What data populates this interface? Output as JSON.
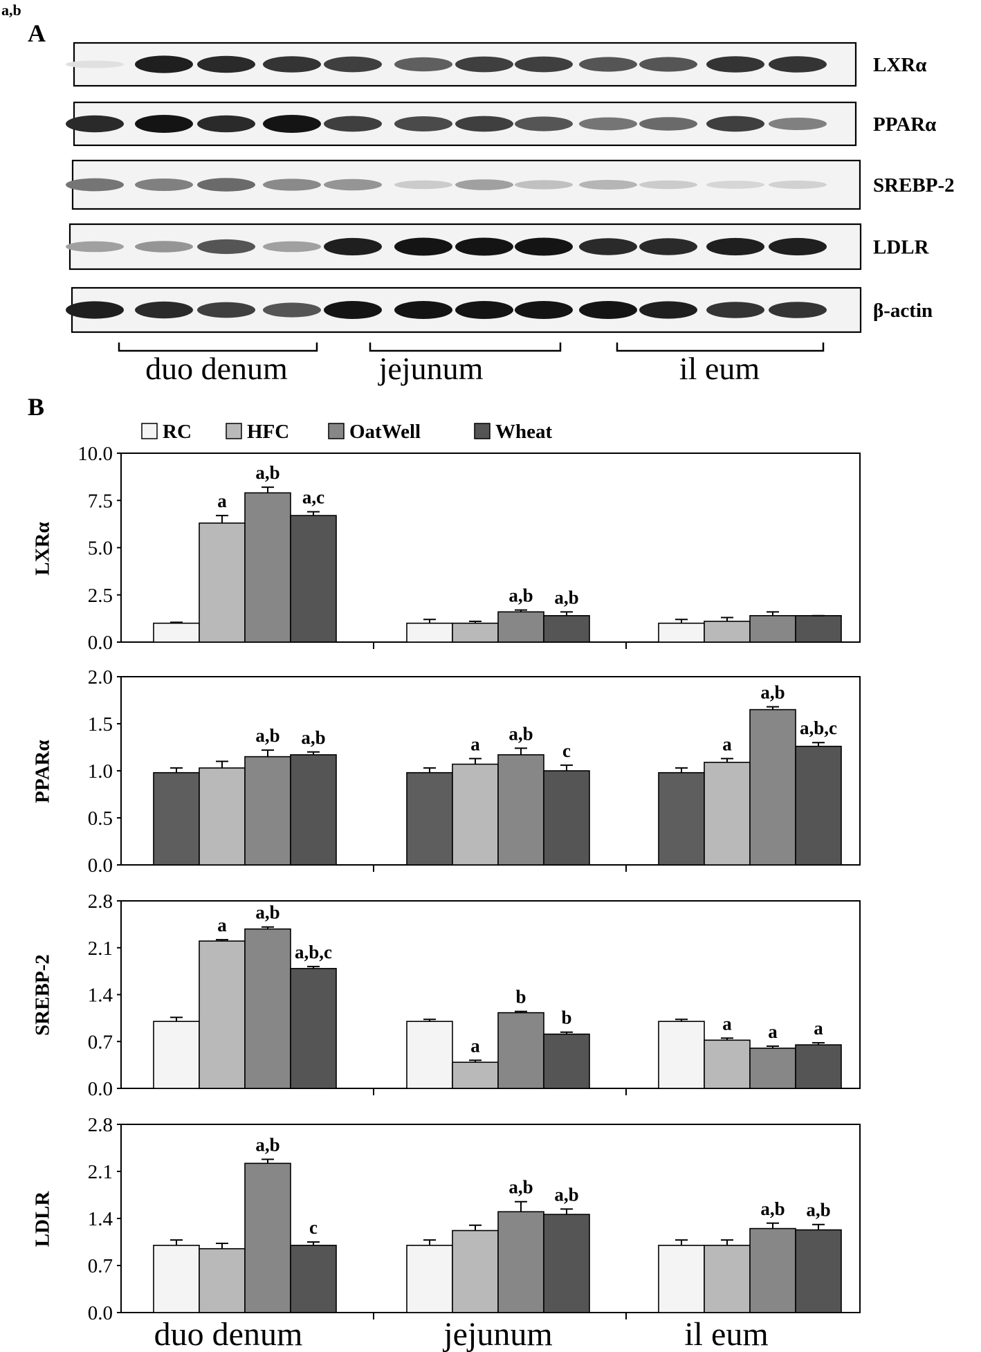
{
  "corner_note": "a,b",
  "panel_a": {
    "label": "A",
    "blots": [
      {
        "protein": "LXRα",
        "intensities": [
          0.05,
          0.95,
          0.9,
          0.85,
          0.8,
          0.65,
          0.8,
          0.8,
          0.7,
          0.7,
          0.85,
          0.85
        ]
      },
      {
        "protein": "PPARα",
        "intensities": [
          0.9,
          1.0,
          0.9,
          1.0,
          0.8,
          0.75,
          0.8,
          0.7,
          0.55,
          0.6,
          0.8,
          0.5
        ]
      },
      {
        "protein": "SREBP-2",
        "intensities": [
          0.55,
          0.5,
          0.6,
          0.45,
          0.4,
          0.15,
          0.35,
          0.2,
          0.25,
          0.15,
          0.1,
          0.12
        ]
      },
      {
        "protein": "LDLR",
        "intensities": [
          0.35,
          0.4,
          0.7,
          0.35,
          0.95,
          1.0,
          1.0,
          1.0,
          0.9,
          0.9,
          0.95,
          0.95
        ]
      },
      {
        "protein": "β-actin",
        "intensities": [
          0.95,
          0.9,
          0.8,
          0.7,
          1.0,
          1.0,
          1.0,
          1.0,
          1.0,
          0.95,
          0.85,
          0.85
        ]
      }
    ],
    "segments": [
      "duo denum",
      "jejunum",
      "il eum"
    ]
  },
  "panel_b": {
    "label": "B",
    "legend": [
      {
        "name": "RC",
        "color": "#f4f4f4"
      },
      {
        "name": "HFC",
        "color": "#b9b9b9"
      },
      {
        "name": "OatWell",
        "color": "#878787"
      },
      {
        "name": "Wheat",
        "color": "#555555"
      }
    ],
    "x_categories": [
      "duo denum",
      "jejunum",
      "il eum"
    ]
  },
  "chart_data": [
    {
      "type": "bar",
      "ylabel": "LXRα",
      "ylim": [
        0,
        10
      ],
      "yticks": [
        "0.0",
        "2.5",
        "5.0",
        "7.5",
        "10.0"
      ],
      "categories": [
        "duodenum",
        "jejunum",
        "ileum"
      ],
      "series": [
        {
          "name": "RC",
          "values": [
            1.0,
            1.0,
            1.0
          ],
          "errors": [
            0.05,
            0.2,
            0.2
          ],
          "labels": [
            "",
            "",
            ""
          ]
        },
        {
          "name": "HFC",
          "values": [
            6.3,
            1.0,
            1.1
          ],
          "errors": [
            0.4,
            0.1,
            0.2
          ],
          "labels": [
            "a",
            "",
            ""
          ]
        },
        {
          "name": "OatWell",
          "values": [
            7.9,
            1.6,
            1.4
          ],
          "errors": [
            0.3,
            0.1,
            0.2
          ],
          "labels": [
            "a,b",
            "a,b",
            ""
          ]
        },
        {
          "name": "Wheat",
          "values": [
            6.7,
            1.4,
            1.4
          ],
          "errors": [
            0.2,
            0.2,
            0.0
          ],
          "labels": [
            "a,c",
            "a,b",
            ""
          ]
        }
      ]
    },
    {
      "type": "bar",
      "ylabel": "PPARα",
      "ylim": [
        0,
        2
      ],
      "yticks": [
        "0.0",
        "0.5",
        "1.0",
        "1.5",
        "2.0"
      ],
      "categories": [
        "duodenum",
        "jejunum",
        "ileum"
      ],
      "series": [
        {
          "name": "RC",
          "values": [
            0.98,
            0.98,
            0.98
          ],
          "errors": [
            0.05,
            0.05,
            0.05
          ],
          "labels": [
            "",
            "",
            ""
          ]
        },
        {
          "name": "HFC",
          "values": [
            1.03,
            1.07,
            1.09
          ],
          "errors": [
            0.07,
            0.06,
            0.04
          ],
          "labels": [
            "",
            "a",
            "a"
          ]
        },
        {
          "name": "OatWell",
          "values": [
            1.15,
            1.17,
            1.65
          ],
          "errors": [
            0.07,
            0.07,
            0.03
          ],
          "labels": [
            "a,b",
            "a,b",
            "a,b"
          ]
        },
        {
          "name": "Wheat",
          "values": [
            1.17,
            1.0,
            1.26
          ],
          "errors": [
            0.03,
            0.06,
            0.04
          ],
          "labels": [
            "a,b",
            "c",
            "a,b,c"
          ]
        }
      ]
    },
    {
      "type": "bar",
      "ylabel": "SREBP-2",
      "ylim": [
        0,
        2.8
      ],
      "yticks": [
        "0.0",
        "0.7",
        "1.4",
        "2.1",
        "2.8"
      ],
      "categories": [
        "duodenum",
        "jejunum",
        "ileum"
      ],
      "series": [
        {
          "name": "RC",
          "values": [
            1.0,
            1.0,
            1.0
          ],
          "errors": [
            0.06,
            0.03,
            0.03
          ],
          "labels": [
            "",
            "",
            ""
          ]
        },
        {
          "name": "HFC",
          "values": [
            2.2,
            0.39,
            0.72
          ],
          "errors": [
            0.02,
            0.03,
            0.03
          ],
          "labels": [
            "a",
            "a",
            "a"
          ]
        },
        {
          "name": "OatWell",
          "values": [
            2.38,
            1.13,
            0.6
          ],
          "errors": [
            0.03,
            0.02,
            0.03
          ],
          "labels": [
            "a,b",
            "b",
            "a"
          ]
        },
        {
          "name": "Wheat",
          "values": [
            1.79,
            0.81,
            0.65
          ],
          "errors": [
            0.03,
            0.03,
            0.03
          ],
          "labels": [
            "a,b,c",
            "b",
            "a"
          ]
        }
      ]
    },
    {
      "type": "bar",
      "ylabel": "LDLR",
      "ylim": [
        0,
        2.8
      ],
      "yticks": [
        "0.0",
        "0.7",
        "1.4",
        "2.1",
        "2.8"
      ],
      "categories": [
        "duodenum",
        "jejunum",
        "ileum"
      ],
      "series": [
        {
          "name": "RC",
          "values": [
            1.0,
            1.0,
            1.0
          ],
          "errors": [
            0.08,
            0.08,
            0.08
          ],
          "labels": [
            "",
            "",
            ""
          ]
        },
        {
          "name": "HFC",
          "values": [
            0.95,
            1.22,
            1.0
          ],
          "errors": [
            0.08,
            0.08,
            0.08
          ],
          "labels": [
            "",
            "",
            ""
          ]
        },
        {
          "name": "OatWell",
          "values": [
            2.22,
            1.5,
            1.25
          ],
          "errors": [
            0.06,
            0.15,
            0.08
          ],
          "labels": [
            "a,b",
            "a,b",
            "a,b"
          ]
        },
        {
          "name": "Wheat",
          "values": [
            1.0,
            1.46,
            1.23
          ],
          "errors": [
            0.05,
            0.08,
            0.08
          ],
          "labels": [
            "c",
            "a,b",
            "a,b"
          ]
        }
      ]
    }
  ]
}
